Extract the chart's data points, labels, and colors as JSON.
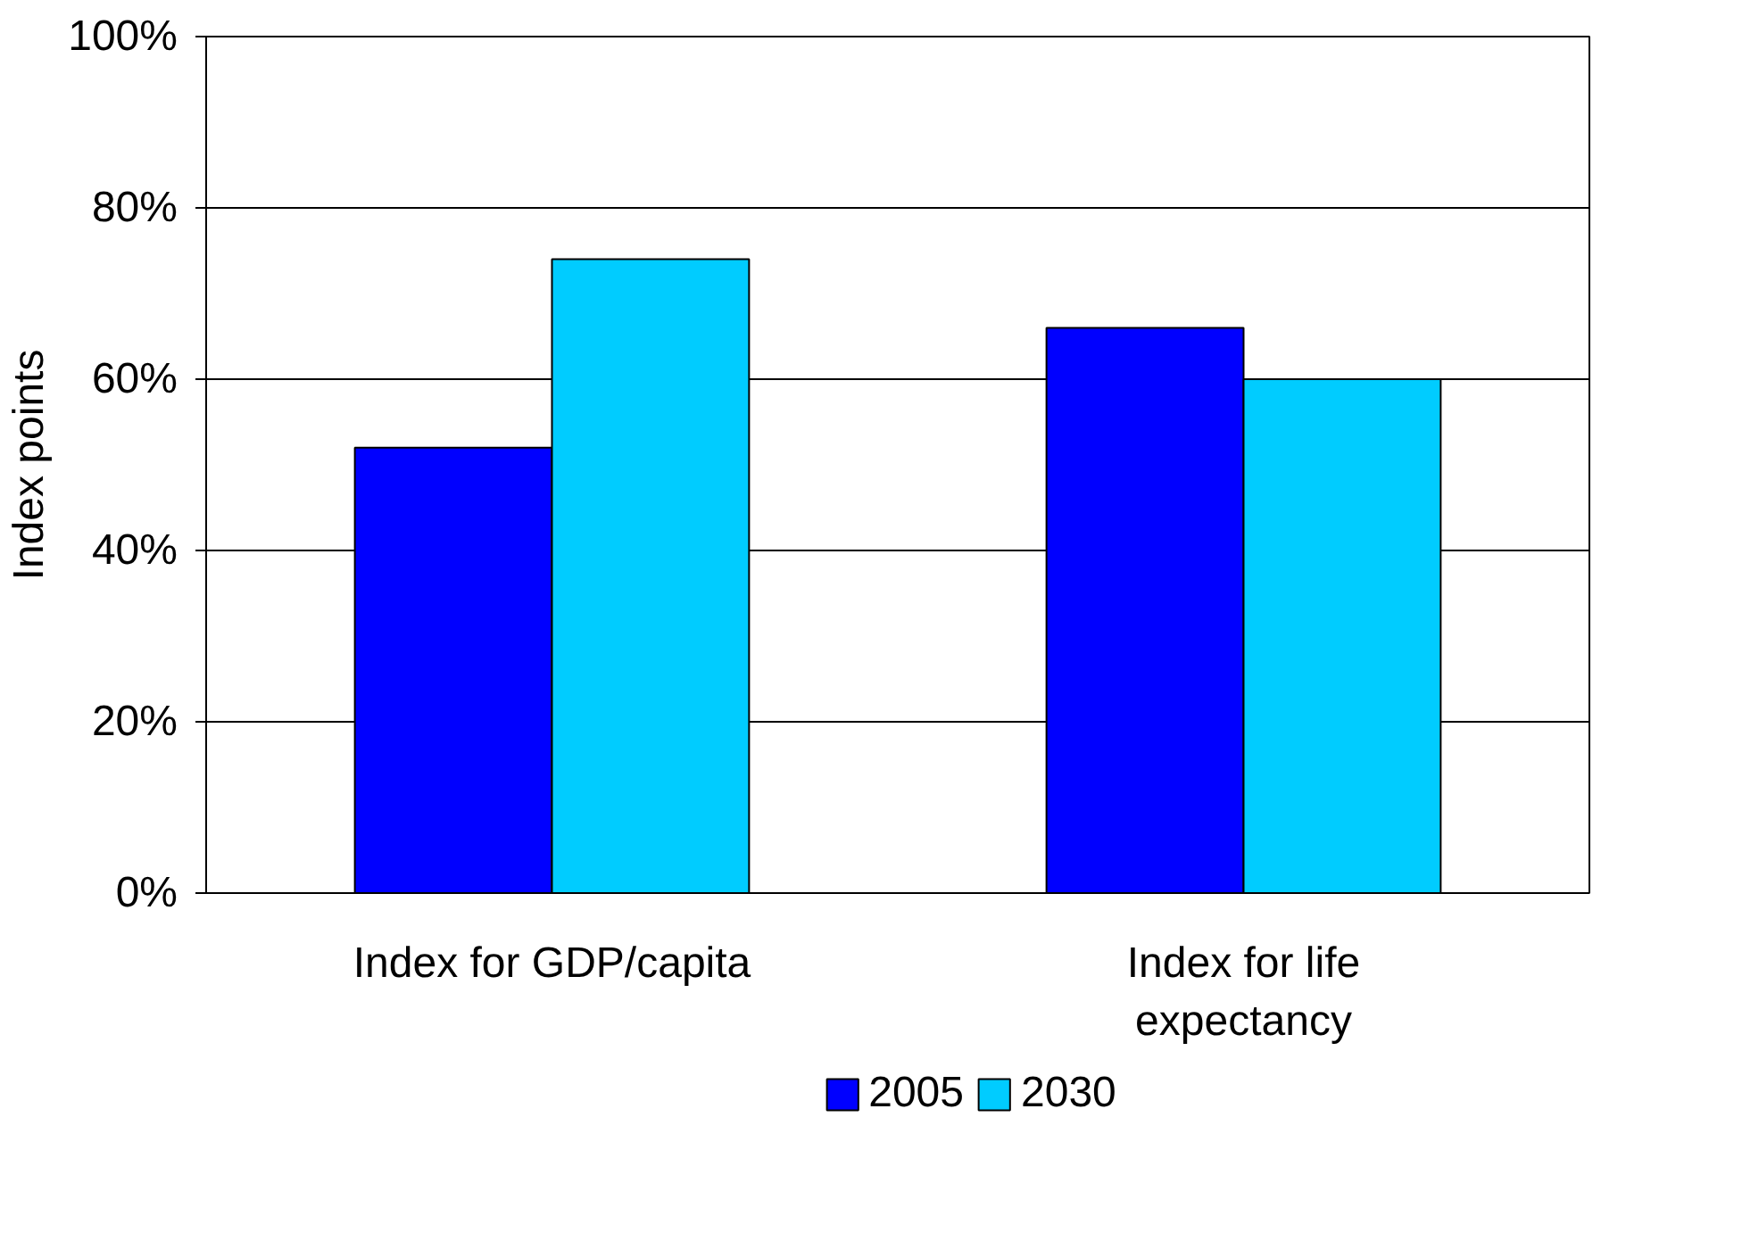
{
  "chart_data": {
    "type": "bar",
    "ylabel": "Index points",
    "categories": [
      "Index for GDP/capita",
      "Index for life expectancy"
    ],
    "series": [
      {
        "name": "2005",
        "color": "#0000ff",
        "values": [
          52,
          66
        ]
      },
      {
        "name": "2030",
        "color": "#00ccff",
        "values": [
          74,
          60
        ]
      }
    ],
    "ylim": [
      0,
      100
    ],
    "yticks": [
      {
        "value": 0,
        "label": "0%"
      },
      {
        "value": 20,
        "label": "20%"
      },
      {
        "value": 40,
        "label": "40%"
      },
      {
        "value": 60,
        "label": "60%"
      },
      {
        "value": 80,
        "label": "80%"
      },
      {
        "value": 100,
        "label": "100%"
      }
    ],
    "grid": "y",
    "legend": "bottom"
  }
}
